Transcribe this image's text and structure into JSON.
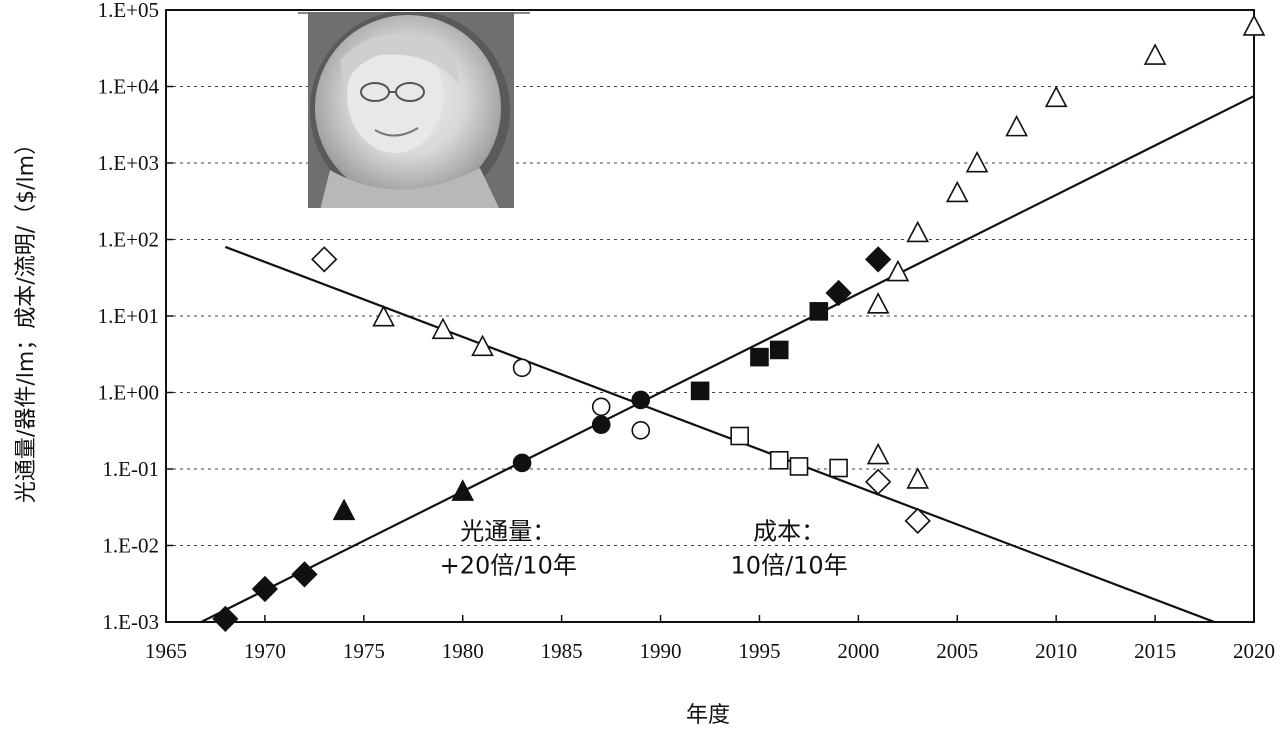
{
  "chart_data": {
    "type": "scatter",
    "title": "",
    "xlabel": "年度",
    "ylabel": "光通量/器件/lm；成本/流明/（$/lm）",
    "x_range": [
      1965,
      2020
    ],
    "x_ticks": [
      "1965",
      "1970",
      "1975",
      "1980",
      "1985",
      "1990",
      "1995",
      "2000",
      "2005",
      "2010",
      "2015",
      "2020"
    ],
    "y_scale": "log",
    "y_range": [
      0.001,
      100000
    ],
    "y_ticks": [
      "1.E-03",
      "1.E-02",
      "1.E-01",
      "1.E+00",
      "1.E+01",
      "1.E+02",
      "1.E+03",
      "1.E+04",
      "1.E+05"
    ],
    "grid": "horizontal dashed",
    "series": [
      {
        "marker": "filled-diamond",
        "points": [
          [
            1968,
            0.0011
          ],
          [
            1970,
            0.0027
          ],
          [
            1972,
            0.0042
          ],
          [
            1999,
            20
          ],
          [
            2001,
            55
          ]
        ]
      },
      {
        "marker": "filled-triangle",
        "points": [
          [
            1974,
            0.028
          ],
          [
            1980,
            0.05
          ]
        ]
      },
      {
        "marker": "filled-circle",
        "points": [
          [
            1983,
            0.12
          ],
          [
            1987,
            0.38
          ],
          [
            1989,
            0.8
          ]
        ]
      },
      {
        "marker": "filled-square",
        "points": [
          [
            1992,
            1.05
          ],
          [
            1995,
            2.9
          ],
          [
            1996,
            3.6
          ],
          [
            1998,
            11.5
          ]
        ]
      },
      {
        "marker": "open-diamond",
        "points": [
          [
            1973,
            55
          ],
          [
            2001,
            0.068
          ],
          [
            2003,
            0.021
          ]
        ]
      },
      {
        "marker": "open-triangle",
        "points": [
          [
            1976,
            9.5
          ],
          [
            1979,
            6.5
          ],
          [
            1981,
            3.9
          ],
          [
            2001,
            0.15
          ],
          [
            2003,
            0.072
          ],
          [
            2001,
            14
          ],
          [
            2002,
            37
          ],
          [
            2003,
            120
          ],
          [
            2005,
            400
          ],
          [
            2006,
            980
          ],
          [
            2008,
            2900
          ],
          [
            2010,
            7000
          ],
          [
            2015,
            25000
          ],
          [
            2020,
            60000
          ]
        ]
      },
      {
        "marker": "open-circle",
        "points": [
          [
            1983,
            2.1
          ],
          [
            1987,
            0.65
          ],
          [
            1989,
            0.32
          ]
        ]
      },
      {
        "marker": "open-square",
        "points": [
          [
            1994,
            0.27
          ],
          [
            1996,
            0.13
          ],
          [
            1997,
            0.108
          ],
          [
            1999,
            0.103
          ]
        ]
      }
    ],
    "trendlines": [
      {
        "name": "光通量",
        "from": [
          1966.5,
          0.00092
        ],
        "to": [
          2020,
          7500
        ]
      },
      {
        "name": "成本",
        "from": [
          1968,
          80
        ],
        "to": [
          2018,
          0.001
        ]
      }
    ],
    "annotations": [
      {
        "lines": [
          "光通量：",
          "+20倍/10年"
        ],
        "at": [
          1982.3,
          0.012
        ]
      },
      {
        "lines": [
          "成本：",
          "10倍/10年"
        ],
        "at": [
          1996.5,
          0.012
        ]
      }
    ]
  }
}
